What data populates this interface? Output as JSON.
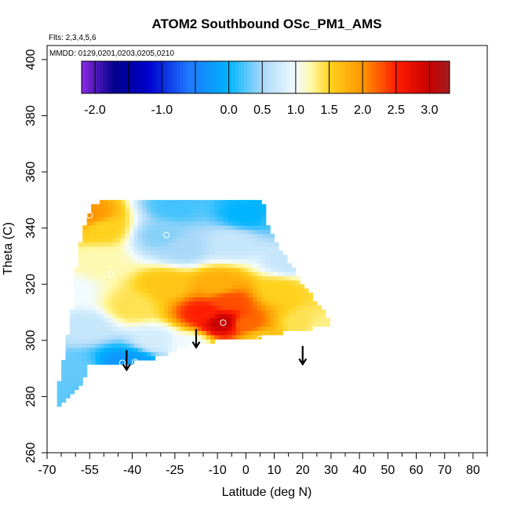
{
  "chart_data": {
    "type": "heatmap",
    "title": "ATOM2 Southbound OSc_PM1_AMS",
    "flights_note": "Flts: 2,3,4,5,6",
    "dates_note": "MMDD: 0129,0201,0203,0205,0210",
    "xlabel": "Latitude (deg N)",
    "ylabel": "Theta (C)",
    "xlim": [
      -70,
      85
    ],
    "ylim": [
      260,
      405
    ],
    "x_ticks": [
      -70,
      -55,
      -40,
      -25,
      -10,
      0,
      10,
      20,
      30,
      40,
      50,
      60,
      70,
      80
    ],
    "x_minor_ticks": [
      -65,
      -60,
      -50,
      -45,
      -35,
      -30,
      -20,
      -15,
      -5,
      5,
      15,
      25,
      35,
      45,
      55,
      65,
      75,
      85
    ],
    "y_ticks": [
      260,
      280,
      300,
      320,
      340,
      360,
      380,
      400
    ],
    "colorbar": {
      "range": [
        -2.2,
        3.3
      ],
      "labels": [
        "-2.0",
        "-1.0",
        "0.0",
        "0.5",
        "1.0",
        "1.5",
        "2.0",
        "2.5",
        "3.0"
      ],
      "label_values": [
        -2.0,
        -1.0,
        0.0,
        0.5,
        1.0,
        1.5,
        2.0,
        2.5,
        3.0
      ],
      "stops": [
        {
          "v": -2.2,
          "c": "#8a2be2"
        },
        {
          "v": -1.7,
          "c": "#00008b"
        },
        {
          "v": -1.2,
          "c": "#0000cd"
        },
        {
          "v": -0.6,
          "c": "#1e78ff"
        },
        {
          "v": 0.0,
          "c": "#00b4ff"
        },
        {
          "v": 0.5,
          "c": "#a8d8f8"
        },
        {
          "v": 1.0,
          "c": "#f2fbff"
        },
        {
          "v": 1.25,
          "c": "#fff8a0"
        },
        {
          "v": 1.5,
          "c": "#ffd21e"
        },
        {
          "v": 2.0,
          "c": "#ff9600"
        },
        {
          "v": 2.5,
          "c": "#ff1e00"
        },
        {
          "v": 3.0,
          "c": "#c80000"
        },
        {
          "v": 3.3,
          "c": "#a01e1e"
        }
      ]
    },
    "data_region_polygon": [
      [
        -67,
        274
      ],
      [
        -65,
        277
      ],
      [
        -58,
        284
      ],
      [
        -55,
        292
      ],
      [
        -50,
        292
      ],
      [
        -45,
        291
      ],
      [
        -40,
        292
      ],
      [
        -30,
        294
      ],
      [
        -22,
        298
      ],
      [
        -16,
        299
      ],
      [
        -10,
        300
      ],
      [
        0,
        300
      ],
      [
        8,
        302
      ],
      [
        15,
        303
      ],
      [
        22,
        304
      ],
      [
        30,
        305
      ],
      [
        30,
        307
      ],
      [
        26,
        312
      ],
      [
        20,
        320
      ],
      [
        14,
        330
      ],
      [
        10,
        336
      ],
      [
        8,
        340
      ],
      [
        6,
        350
      ],
      [
        -50,
        350
      ],
      [
        -55,
        347
      ],
      [
        -58,
        336
      ],
      [
        -60,
        325
      ],
      [
        -61,
        312
      ],
      [
        -63,
        300
      ],
      [
        -65,
        288
      ],
      [
        -67,
        280
      ]
    ],
    "field_anchors": [
      {
        "lat": -55,
        "theta": 344.5,
        "value": 2.0
      },
      {
        "lat": -50,
        "theta": 340,
        "value": 1.5
      },
      {
        "lat": -30,
        "theta": 337.5,
        "value": 0.4
      },
      {
        "lat": -52,
        "theta": 328,
        "value": 1.2
      },
      {
        "lat": -62,
        "theta": 318,
        "value": 1.0
      },
      {
        "lat": -56,
        "theta": 305,
        "value": 0.7
      },
      {
        "lat": -60,
        "theta": 290,
        "value": 0.3
      },
      {
        "lat": -43,
        "theta": 292,
        "value": -0.3
      },
      {
        "lat": -39,
        "theta": 292.3,
        "value": -0.2
      },
      {
        "lat": -32,
        "theta": 300,
        "value": 0.8
      },
      {
        "lat": -20,
        "theta": 298.5,
        "value": 1.0
      },
      {
        "lat": -40,
        "theta": 312,
        "value": 1.4
      },
      {
        "lat": -28,
        "theta": 320,
        "value": 1.6
      },
      {
        "lat": -10,
        "theta": 320,
        "value": 1.8
      },
      {
        "lat": -15,
        "theta": 310,
        "value": 2.5
      },
      {
        "lat": -8,
        "theta": 306.5,
        "value": 3.0
      },
      {
        "lat": -6,
        "theta": 314,
        "value": 2.3
      },
      {
        "lat": 0,
        "theta": 306,
        "value": 2.2
      },
      {
        "lat": 5,
        "theta": 300.5,
        "value": 1.6
      },
      {
        "lat": 12,
        "theta": 318,
        "value": 1.5
      },
      {
        "lat": 20,
        "theta": 306,
        "value": 1.4
      },
      {
        "lat": 25,
        "theta": 305,
        "value": 1.3
      },
      {
        "lat": 15,
        "theta": 328,
        "value": 0.7
      },
      {
        "lat": -25,
        "theta": 348,
        "value": 0.2
      },
      {
        "lat": 0,
        "theta": 345,
        "value": 0.0
      },
      {
        "lat": 9,
        "theta": 348.2,
        "value": 0.0
      },
      {
        "lat": 13.5,
        "theta": 345.8,
        "value": 0.3
      },
      {
        "lat": -22,
        "theta": 333,
        "value": 0.5
      },
      {
        "lat": -5,
        "theta": 335,
        "value": 0.7
      }
    ],
    "sample_points": [
      {
        "lat": -55,
        "theta": 344.5
      },
      {
        "lat": -28,
        "theta": 337.5
      },
      {
        "lat": 8.5,
        "theta": 348.5
      },
      {
        "lat": 9.5,
        "theta": 348.2
      },
      {
        "lat": 13.5,
        "theta": 345.8
      },
      {
        "lat": -47.5,
        "theta": 323.5
      },
      {
        "lat": -8,
        "theta": 306.3
      },
      {
        "lat": 5,
        "theta": 300.5
      },
      {
        "lat": -43.5,
        "theta": 292
      },
      {
        "lat": -39,
        "theta": 292.3
      }
    ],
    "arrows": [
      {
        "lat": -42,
        "theta_top": 296.5,
        "theta_bottom": 289.5
      },
      {
        "lat": -17.5,
        "theta_top": 304,
        "theta_bottom": 297.5
      },
      {
        "lat": 20,
        "theta_top": 298,
        "theta_bottom": 291.5
      }
    ]
  }
}
